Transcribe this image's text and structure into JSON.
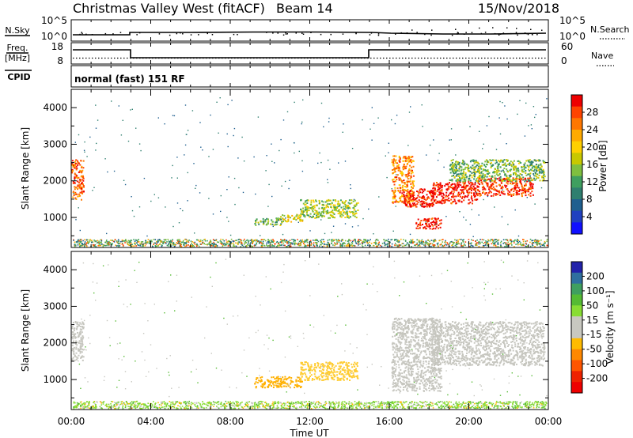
{
  "header": {
    "station": "Christmas Valley West (fitACF)",
    "beam": "Beam 14",
    "date": "15/Nov/2018"
  },
  "noise_panel": {
    "left_label": "N.Sky",
    "right_label": "N.Search",
    "left_ticks": [
      "10^5",
      "10^0"
    ],
    "right_ticks": [
      "10^5",
      "10^0"
    ]
  },
  "freq_panel": {
    "left_label_top": "Freq.",
    "left_label_unit": "[MHz]",
    "right_label": "Nave",
    "left_ticks": [
      "18",
      "8"
    ],
    "right_ticks": [
      "60",
      "0"
    ]
  },
  "cpid_panel": {
    "label": "CPID",
    "mode_text": "normal (fast) 151 RF"
  },
  "power_panel": {
    "ylabel": "Slant Range [km]",
    "colorbar_label": "Power [dB]",
    "colorbar_ticks": [
      "28",
      "24",
      "20",
      "16",
      "12",
      "8",
      "4"
    ],
    "colorbar_colors": [
      "#ee0000",
      "#ff4400",
      "#ff7700",
      "#ffaa00",
      "#ffd000",
      "#c8c800",
      "#7fbf3f",
      "#3f9f5f",
      "#2f7f6f",
      "#1f5f8f",
      "#2040c0",
      "#1010ff"
    ]
  },
  "velocity_panel": {
    "ylabel": "Slant Range [km]",
    "colorbar_label": "Velocity [m s⁻¹]",
    "colorbar_ticks": [
      "200",
      "100",
      "50",
      "15",
      "-15",
      "-50",
      "-100",
      "-200"
    ],
    "colorbar_colors": [
      "#2222aa",
      "#2f6f9f",
      "#3f9f5f",
      "#55bb33",
      "#88dd33",
      "#c8c8c0",
      "#c8c8c0",
      "#ffbb00",
      "#ff8800",
      "#ff5500",
      "#ee2200",
      "#ee0000"
    ]
  },
  "x_axis": {
    "label": "Time UT",
    "ticks": [
      "00:00",
      "04:00",
      "08:00",
      "12:00",
      "16:00",
      "20:00",
      "00:00"
    ]
  },
  "chart_data": {
    "type": "heatmap",
    "time_range_hours": [
      0,
      24
    ],
    "slant_range_km": [
      180,
      4500
    ],
    "yticks": [
      1000,
      2000,
      3000,
      4000
    ],
    "power_regions": [
      {
        "t0": 0.0,
        "t1": 0.6,
        "r0": 1500,
        "r1": 2600,
        "db": 24
      },
      {
        "t0": 9.2,
        "t1": 10.6,
        "r0": 800,
        "r1": 1000,
        "db": 12
      },
      {
        "t0": 10.5,
        "t1": 11.6,
        "r0": 900,
        "r1": 1100,
        "db": 16
      },
      {
        "t0": 11.5,
        "t1": 14.4,
        "r0": 1000,
        "r1": 1500,
        "db": 14
      },
      {
        "t0": 16.1,
        "t1": 17.2,
        "r0": 1400,
        "r1": 2700,
        "db": 22
      },
      {
        "t0": 16.6,
        "t1": 18.2,
        "r0": 1300,
        "r1": 1800,
        "db": 28
      },
      {
        "t0": 17.3,
        "t1": 18.6,
        "r0": 700,
        "r1": 1000,
        "db": 28
      },
      {
        "t0": 18.1,
        "t1": 20.4,
        "r0": 1400,
        "r1": 2000,
        "db": 28
      },
      {
        "t0": 20.4,
        "t1": 23.2,
        "r0": 1600,
        "r1": 2100,
        "db": 26
      },
      {
        "t0": 19.0,
        "t1": 23.8,
        "r0": 2000,
        "r1": 2600,
        "db": 12
      }
    ],
    "velocity_regions": [
      {
        "t0": 0.0,
        "t1": 0.6,
        "r0": 1500,
        "r1": 2600,
        "v": 0
      },
      {
        "t0": 9.2,
        "t1": 11.6,
        "r0": 800,
        "r1": 1100,
        "v": -50
      },
      {
        "t0": 11.5,
        "t1": 14.4,
        "r0": 1000,
        "r1": 1500,
        "v": -15
      },
      {
        "t0": 16.1,
        "t1": 18.6,
        "r0": 700,
        "r1": 2700,
        "v": 0
      },
      {
        "t0": 18.1,
        "t1": 23.8,
        "r0": 1400,
        "r1": 2600,
        "v": 0
      }
    ],
    "ground_scatter_km": [
      220,
      420
    ]
  }
}
